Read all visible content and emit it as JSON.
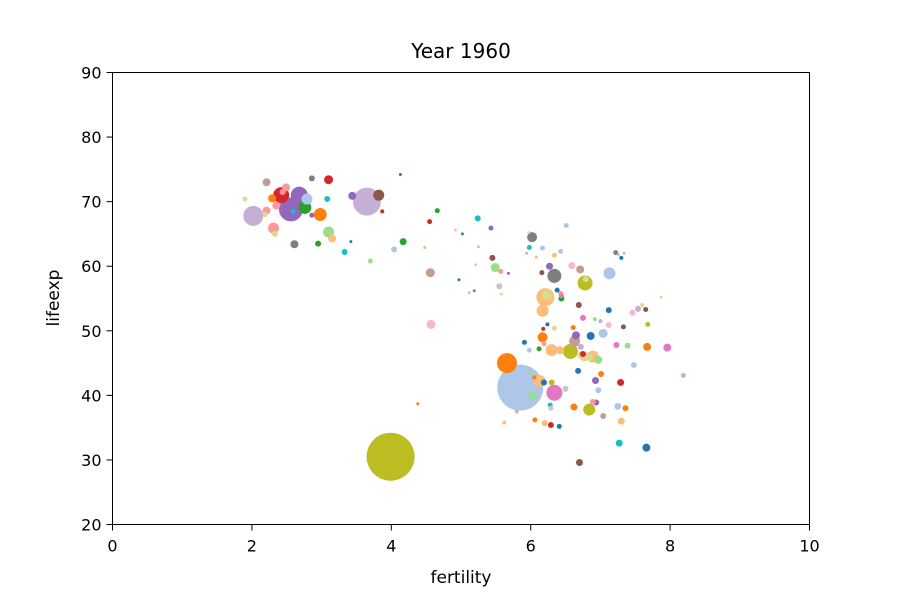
{
  "chart_data": {
    "type": "scatter",
    "title": "Year 1960",
    "xlabel": "fertility",
    "ylabel": "lifeexp",
    "xlim": [
      0,
      10
    ],
    "ylim": [
      20,
      90
    ],
    "x_ticks": [
      0,
      2,
      4,
      6,
      8,
      10
    ],
    "y_ticks": [
      20,
      30,
      40,
      50,
      60,
      70,
      80,
      90
    ],
    "grid": false,
    "legend": "none",
    "size_encoding": "population (relative)",
    "color_encoding": "country (tab20 palette)",
    "points": [
      {
        "x": 3.99,
        "y": 30.5,
        "s": 24,
        "c": "#bcbd22"
      },
      {
        "x": 5.85,
        "y": 41.2,
        "s": 23,
        "c": "#aec7e8"
      },
      {
        "x": 3.65,
        "y": 70.0,
        "s": 14,
        "c": "#c5b0d5"
      },
      {
        "x": 2.56,
        "y": 68.8,
        "s": 12,
        "c": "#9467bd"
      },
      {
        "x": 2.02,
        "y": 67.8,
        "s": 10,
        "c": "#c5b0d5"
      },
      {
        "x": 2.68,
        "y": 71.0,
        "s": 8.5,
        "c": "#9467bd"
      },
      {
        "x": 2.42,
        "y": 71.0,
        "s": 8,
        "c": "#d62728"
      },
      {
        "x": 5.66,
        "y": 45.0,
        "s": 10,
        "c": "#ff7f0e"
      },
      {
        "x": 6.21,
        "y": 55.2,
        "s": 9,
        "c": "#ffbb78"
      },
      {
        "x": 6.34,
        "y": 40.4,
        "s": 8,
        "c": "#e377c2"
      },
      {
        "x": 6.57,
        "y": 46.8,
        "s": 7.5,
        "c": "#bcbd22"
      },
      {
        "x": 6.78,
        "y": 57.4,
        "s": 7.5,
        "c": "#bcbd22"
      },
      {
        "x": 6.34,
        "y": 58.5,
        "s": 7,
        "c": "#7f7f7f"
      },
      {
        "x": 2.76,
        "y": 69.1,
        "s": 6.5,
        "c": "#2ca02c"
      },
      {
        "x": 2.98,
        "y": 68.0,
        "s": 6.5,
        "c": "#ff7f0e"
      },
      {
        "x": 7.13,
        "y": 58.9,
        "s": 6,
        "c": "#aec7e8"
      },
      {
        "x": 6.17,
        "y": 53.1,
        "s": 6,
        "c": "#ffbb78"
      },
      {
        "x": 6.3,
        "y": 47.0,
        "s": 6,
        "c": "#ffbb78"
      },
      {
        "x": 6.84,
        "y": 37.8,
        "s": 6,
        "c": "#bcbd22"
      },
      {
        "x": 6.13,
        "y": 42.2,
        "s": 6,
        "c": "#ffbb78"
      },
      {
        "x": 6.89,
        "y": 46.0,
        "s": 6,
        "c": "#ffbb78"
      },
      {
        "x": 2.31,
        "y": 65.9,
        "s": 5.5,
        "c": "#ff9896"
      },
      {
        "x": 3.1,
        "y": 65.3,
        "s": 5.5,
        "c": "#98df8a"
      },
      {
        "x": 2.79,
        "y": 70.4,
        "s": 5.5,
        "c": "#aec7e8"
      },
      {
        "x": 3.82,
        "y": 71.0,
        "s": 5.5,
        "c": "#8c564b"
      },
      {
        "x": 6.63,
        "y": 48.4,
        "s": 5.5,
        "c": "#c49c94"
      },
      {
        "x": 6.02,
        "y": 64.5,
        "s": 5,
        "c": "#7f7f7f"
      },
      {
        "x": 6.17,
        "y": 49.0,
        "s": 5,
        "c": "#ff7f0e"
      },
      {
        "x": 6.23,
        "y": 55.5,
        "s": 5,
        "c": "#dbdb8d"
      },
      {
        "x": 3.1,
        "y": 73.4,
        "s": 4.5,
        "c": "#d62728"
      },
      {
        "x": 2.21,
        "y": 73.0,
        "s": 4,
        "c": "#c49c94"
      },
      {
        "x": 2.49,
        "y": 72.2,
        "s": 4,
        "c": "#ff9896"
      },
      {
        "x": 2.29,
        "y": 70.5,
        "s": 4,
        "c": "#ff7f0e"
      },
      {
        "x": 2.21,
        "y": 68.6,
        "s": 4,
        "c": "#ff9896"
      },
      {
        "x": 2.35,
        "y": 69.4,
        "s": 4,
        "c": "#ff9896"
      },
      {
        "x": 3.44,
        "y": 70.9,
        "s": 4,
        "c": "#9467bd"
      },
      {
        "x": 4.56,
        "y": 59.0,
        "s": 4.5,
        "c": "#c49c94"
      },
      {
        "x": 4.57,
        "y": 51.0,
        "s": 4.5,
        "c": "#f7b6d2"
      },
      {
        "x": 2.61,
        "y": 63.4,
        "s": 4,
        "c": "#7f7f7f"
      },
      {
        "x": 3.15,
        "y": 64.3,
        "s": 4,
        "c": "#ffbb78"
      },
      {
        "x": 5.49,
        "y": 59.8,
        "s": 4.5,
        "c": "#98df8a"
      },
      {
        "x": 6.27,
        "y": 60.0,
        "s": 3.5,
        "c": "#9467bd"
      },
      {
        "x": 6.59,
        "y": 60.1,
        "s": 3.5,
        "c": "#f7b6d2"
      },
      {
        "x": 6.71,
        "y": 59.5,
        "s": 4,
        "c": "#c49c94"
      },
      {
        "x": 6.42,
        "y": 47.0,
        "s": 4,
        "c": "#ffbb78"
      },
      {
        "x": 6.65,
        "y": 49.3,
        "s": 4,
        "c": "#9467bd"
      },
      {
        "x": 6.86,
        "y": 49.2,
        "s": 4,
        "c": "#1f77b4"
      },
      {
        "x": 7.04,
        "y": 49.6,
        "s": 4.5,
        "c": "#aec7e8"
      },
      {
        "x": 6.77,
        "y": 46.0,
        "s": 4.5,
        "c": "#ffbb78"
      },
      {
        "x": 6.74,
        "y": 46.2,
        "s": 4.5,
        "c": "#dbdb8d"
      },
      {
        "x": 6.97,
        "y": 45.5,
        "s": 4,
        "c": "#98df8a"
      },
      {
        "x": 7.67,
        "y": 47.5,
        "s": 4,
        "c": "#ff7f0e"
      },
      {
        "x": 7.96,
        "y": 47.4,
        "s": 4,
        "c": "#e377c2"
      },
      {
        "x": 6.03,
        "y": 40.0,
        "s": 4,
        "c": "#98df8a"
      },
      {
        "x": 6.62,
        "y": 38.2,
        "s": 3.5,
        "c": "#ff7f0e"
      },
      {
        "x": 6.93,
        "y": 42.3,
        "s": 3.5,
        "c": "#9467bd"
      },
      {
        "x": 7.29,
        "y": 42.0,
        "s": 3.5,
        "c": "#d62728"
      },
      {
        "x": 7.25,
        "y": 38.3,
        "s": 3.5,
        "c": "#aec7e8"
      },
      {
        "x": 7.3,
        "y": 36.0,
        "s": 3.5,
        "c": "#ffbb78"
      },
      {
        "x": 7.27,
        "y": 32.6,
        "s": 3.5,
        "c": "#17becf"
      },
      {
        "x": 7.66,
        "y": 31.9,
        "s": 4,
        "c": "#1f77b4"
      },
      {
        "x": 6.7,
        "y": 29.6,
        "s": 3.5,
        "c": "#8c564b"
      },
      {
        "x": 3.33,
        "y": 62.2,
        "s": 3,
        "c": "#17becf"
      },
      {
        "x": 3.08,
        "y": 70.4,
        "s": 3,
        "c": "#17becf"
      },
      {
        "x": 2.95,
        "y": 63.5,
        "s": 3,
        "c": "#2ca02c"
      },
      {
        "x": 2.86,
        "y": 73.6,
        "s": 3,
        "c": "#7f7f7f"
      },
      {
        "x": 2.33,
        "y": 65.0,
        "s": 3,
        "c": "#dbdb8d"
      },
      {
        "x": 4.17,
        "y": 63.8,
        "s": 3.5,
        "c": "#2ca02c"
      },
      {
        "x": 4.04,
        "y": 62.6,
        "s": 3,
        "c": "#aec7e8"
      },
      {
        "x": 5.45,
        "y": 61.3,
        "s": 3,
        "c": "#8c564b"
      },
      {
        "x": 5.24,
        "y": 67.4,
        "s": 3,
        "c": "#17becf"
      },
      {
        "x": 5.43,
        "y": 65.9,
        "s": 2.5,
        "c": "#9467bd"
      },
      {
        "x": 4.55,
        "y": 66.9,
        "s": 2.5,
        "c": "#d62728"
      },
      {
        "x": 4.66,
        "y": 68.6,
        "s": 2.5,
        "c": "#2ca02c"
      },
      {
        "x": 3.7,
        "y": 60.8,
        "s": 2.5,
        "c": "#98df8a"
      },
      {
        "x": 5.55,
        "y": 56.9,
        "s": 3,
        "c": "#c7c7c7"
      },
      {
        "x": 6.51,
        "y": 66.3,
        "s": 2.5,
        "c": "#aec7e8"
      },
      {
        "x": 6.17,
        "y": 62.8,
        "s": 2.5,
        "c": "#aec7e8"
      },
      {
        "x": 5.98,
        "y": 62.9,
        "s": 2.5,
        "c": "#17becf"
      },
      {
        "x": 6.43,
        "y": 62.3,
        "s": 2.5,
        "c": "#aec7e8"
      },
      {
        "x": 7.22,
        "y": 62.1,
        "s": 2.5,
        "c": "#7f7f7f"
      },
      {
        "x": 7.3,
        "y": 61.3,
        "s": 2,
        "c": "#1f77b4"
      },
      {
        "x": 6.34,
        "y": 61.7,
        "s": 2.5,
        "c": "#ffbb78"
      },
      {
        "x": 6.16,
        "y": 59.0,
        "s": 2.5,
        "c": "#8c564b"
      },
      {
        "x": 5.57,
        "y": 59.2,
        "s": 2.5,
        "c": "#ff9896"
      },
      {
        "x": 6.79,
        "y": 58.0,
        "s": 3,
        "c": "#dbdb8d"
      },
      {
        "x": 6.38,
        "y": 56.3,
        "s": 2.5,
        "c": "#1f77b4"
      },
      {
        "x": 6.43,
        "y": 55.8,
        "s": 2.5,
        "c": "#ff9896"
      },
      {
        "x": 6.44,
        "y": 55.4,
        "s": 2.5,
        "c": "#e377c2"
      },
      {
        "x": 6.44,
        "y": 55.0,
        "s": 3,
        "c": "#2ca02c"
      },
      {
        "x": 6.69,
        "y": 54.0,
        "s": 3,
        "c": "#8c564b"
      },
      {
        "x": 6.75,
        "y": 52.0,
        "s": 3,
        "c": "#e377c2"
      },
      {
        "x": 7.12,
        "y": 53.2,
        "s": 3,
        "c": "#1f77b4"
      },
      {
        "x": 7.46,
        "y": 52.8,
        "s": 3,
        "c": "#f7b6d2"
      },
      {
        "x": 7.54,
        "y": 53.4,
        "s": 3,
        "c": "#c5b0d5"
      },
      {
        "x": 7.65,
        "y": 53.3,
        "s": 2.5,
        "c": "#8c564b"
      },
      {
        "x": 7.33,
        "y": 50.6,
        "s": 2.5,
        "c": "#8c564b"
      },
      {
        "x": 7.68,
        "y": 51.0,
        "s": 2.5,
        "c": "#bcbd22"
      },
      {
        "x": 7.12,
        "y": 50.9,
        "s": 3,
        "c": "#f7b6d2"
      },
      {
        "x": 6.61,
        "y": 50.5,
        "s": 2.5,
        "c": "#ff7f0e"
      },
      {
        "x": 6.34,
        "y": 50.4,
        "s": 2.5,
        "c": "#dbdb8d"
      },
      {
        "x": 6.19,
        "y": 48.0,
        "s": 2.5,
        "c": "#ff9896"
      },
      {
        "x": 6.12,
        "y": 47.2,
        "s": 2.5,
        "c": "#2ca02c"
      },
      {
        "x": 5.98,
        "y": 47.0,
        "s": 2.5,
        "c": "#aec7e8"
      },
      {
        "x": 5.91,
        "y": 48.2,
        "s": 2.5,
        "c": "#1f77b4"
      },
      {
        "x": 6.72,
        "y": 47.5,
        "s": 3,
        "c": "#c5b0d5"
      },
      {
        "x": 6.84,
        "y": 45.9,
        "s": 3.5,
        "c": "#dbdb8d"
      },
      {
        "x": 6.75,
        "y": 46.4,
        "s": 3,
        "c": "#d62728"
      },
      {
        "x": 7.39,
        "y": 47.7,
        "s": 3,
        "c": "#98df8a"
      },
      {
        "x": 7.48,
        "y": 44.7,
        "s": 3,
        "c": "#aec7e8"
      },
      {
        "x": 7.23,
        "y": 47.8,
        "s": 3,
        "c": "#e377c2"
      },
      {
        "x": 7.01,
        "y": 43.3,
        "s": 3,
        "c": "#ff7f0e"
      },
      {
        "x": 6.68,
        "y": 43.8,
        "s": 3,
        "c": "#1f77b4"
      },
      {
        "x": 6.19,
        "y": 42.0,
        "s": 3,
        "c": "#1f77b4"
      },
      {
        "x": 6.3,
        "y": 42.0,
        "s": 3,
        "c": "#bcbd22"
      },
      {
        "x": 6.5,
        "y": 41.0,
        "s": 3,
        "c": "#c7c7c7"
      },
      {
        "x": 6.97,
        "y": 40.8,
        "s": 3,
        "c": "#aec7e8"
      },
      {
        "x": 6.94,
        "y": 38.9,
        "s": 3,
        "c": "#9467bd"
      },
      {
        "x": 6.89,
        "y": 39.0,
        "s": 3,
        "c": "#ff9896"
      },
      {
        "x": 7.04,
        "y": 36.8,
        "s": 3,
        "c": "#c49c94"
      },
      {
        "x": 7.36,
        "y": 38.0,
        "s": 3,
        "c": "#ff7f0e"
      },
      {
        "x": 6.2,
        "y": 35.7,
        "s": 3,
        "c": "#ffbb78"
      },
      {
        "x": 6.06,
        "y": 36.2,
        "s": 2.5,
        "c": "#ff7f0e"
      },
      {
        "x": 6.28,
        "y": 38.5,
        "s": 2.5,
        "c": "#17becf"
      },
      {
        "x": 6.29,
        "y": 38.0,
        "s": 2.5,
        "c": "#c7c7c7"
      },
      {
        "x": 6.29,
        "y": 35.4,
        "s": 3,
        "c": "#d62728"
      },
      {
        "x": 6.41,
        "y": 35.2,
        "s": 2.5,
        "c": "#1f77b4"
      },
      {
        "x": 5.8,
        "y": 37.5,
        "s": 2,
        "c": "#c5b0d5"
      },
      {
        "x": 5.62,
        "y": 35.8,
        "s": 2,
        "c": "#ffbb78"
      },
      {
        "x": 8.19,
        "y": 43.1,
        "s": 2.5,
        "c": "#c5b0d5"
      },
      {
        "x": 4.38,
        "y": 38.7,
        "s": 1.5,
        "c": "#ff7f0e"
      },
      {
        "x": 4.13,
        "y": 74.2,
        "s": 1.5,
        "c": "#1f77b4"
      },
      {
        "x": 3.42,
        "y": 63.8,
        "s": 1.5,
        "c": "#1f77b4"
      },
      {
        "x": 4.48,
        "y": 62.9,
        "s": 1.5,
        "c": "#98df8a"
      },
      {
        "x": 4.92,
        "y": 65.6,
        "s": 1.5,
        "c": "#f7b6d2"
      },
      {
        "x": 5.02,
        "y": 65.0,
        "s": 1.5,
        "c": "#2ca02c"
      },
      {
        "x": 5.25,
        "y": 63.0,
        "s": 1.5,
        "c": "#c7c7c7"
      },
      {
        "x": 5.19,
        "y": 56.2,
        "s": 1.5,
        "c": "#7f7f7f"
      },
      {
        "x": 5.12,
        "y": 55.9,
        "s": 1.5,
        "c": "#c7c7c7"
      },
      {
        "x": 4.97,
        "y": 57.9,
        "s": 1.5,
        "c": "#1f77b4"
      },
      {
        "x": 5.58,
        "y": 55.7,
        "s": 1.5,
        "c": "#dbdb8d"
      },
      {
        "x": 5.68,
        "y": 58.9,
        "s": 1.5,
        "c": "#9467bd"
      },
      {
        "x": 5.94,
        "y": 62.0,
        "s": 1.5,
        "c": "#c5b0d5"
      },
      {
        "x": 5.97,
        "y": 65.2,
        "s": 1.5,
        "c": "#dbdb8d"
      },
      {
        "x": 6.08,
        "y": 61.4,
        "s": 1.5,
        "c": "#ffbb78"
      },
      {
        "x": 7.34,
        "y": 62.0,
        "s": 1.5,
        "c": "#c5b0d5"
      },
      {
        "x": 7.87,
        "y": 55.2,
        "s": 1.5,
        "c": "#dbdb8d"
      },
      {
        "x": 7.26,
        "y": 61.8,
        "s": 1.5,
        "c": "#ffbb78"
      },
      {
        "x": 5.21,
        "y": 60.2,
        "s": 1.5,
        "c": "#dbdb8d"
      },
      {
        "x": 1.9,
        "y": 70.4,
        "s": 2.5,
        "c": "#dbdb8d"
      },
      {
        "x": 2.19,
        "y": 68.0,
        "s": 2.5,
        "c": "#dbdb8d"
      },
      {
        "x": 2.44,
        "y": 71.5,
        "s": 3,
        "c": "#ff9896"
      },
      {
        "x": 2.86,
        "y": 67.9,
        "s": 2.5,
        "c": "#9467bd"
      },
      {
        "x": 2.59,
        "y": 68.5,
        "s": 2.5,
        "c": "#17becf"
      },
      {
        "x": 3.87,
        "y": 68.5,
        "s": 2,
        "c": "#d62728"
      },
      {
        "x": 6.05,
        "y": 42.8,
        "s": 2,
        "c": "#ff7f0e"
      },
      {
        "x": 6.24,
        "y": 51.0,
        "s": 2,
        "c": "#1f77b4"
      },
      {
        "x": 6.92,
        "y": 51.8,
        "s": 2,
        "c": "#98df8a"
      },
      {
        "x": 7.0,
        "y": 51.5,
        "s": 2,
        "c": "#c5b0d5"
      },
      {
        "x": 6.0,
        "y": 43.5,
        "s": 2,
        "c": "#98df8a"
      },
      {
        "x": 6.18,
        "y": 50.3,
        "s": 2,
        "c": "#d62728"
      },
      {
        "x": 7.6,
        "y": 54.0,
        "s": 2,
        "c": "#dbdb8d"
      }
    ]
  }
}
